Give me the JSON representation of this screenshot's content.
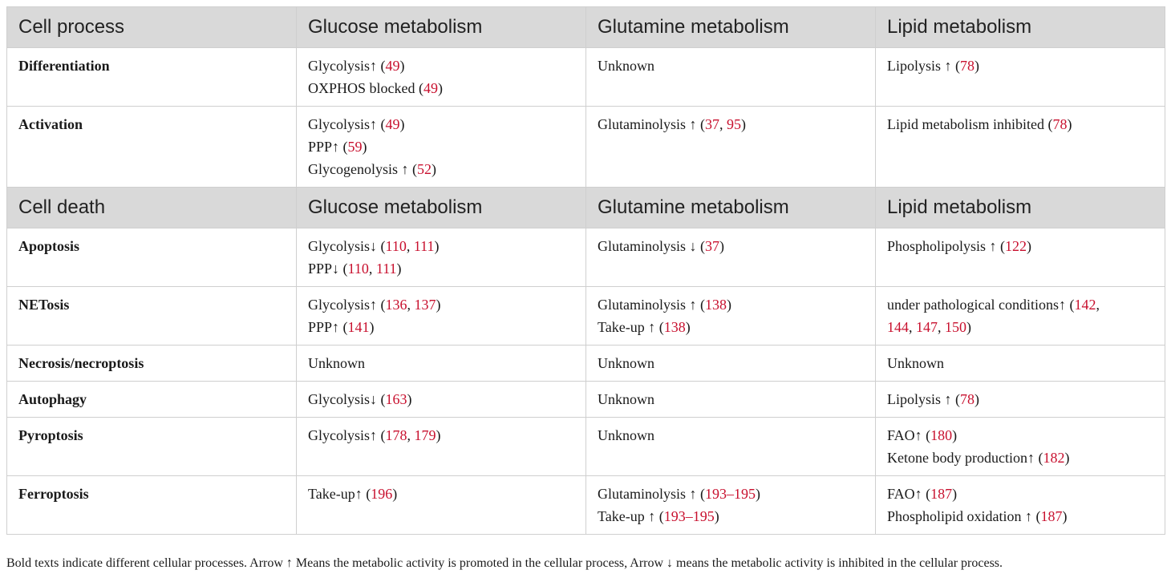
{
  "header1": [
    "Cell process",
    "Glucose metabolism",
    "Glutamine metabolism",
    "Lipid metabolism"
  ],
  "group1": [
    {
      "label": "Differentiation",
      "cells": [
        [
          [
            {
              "t": "Glycolysis↑ ("
            },
            {
              "t": "49",
              "r": true
            },
            {
              "t": ")"
            }
          ],
          [
            {
              "t": "OXPHOS blocked ("
            },
            {
              "t": "49",
              "r": true
            },
            {
              "t": ")"
            }
          ]
        ],
        [
          [
            {
              "t": "Unknown"
            }
          ]
        ],
        [
          [
            {
              "t": "Lipolysis ↑ ("
            },
            {
              "t": "78",
              "r": true
            },
            {
              "t": ")"
            }
          ]
        ]
      ]
    },
    {
      "label": "Activation",
      "cells": [
        [
          [
            {
              "t": "Glycolysis↑ ("
            },
            {
              "t": "49",
              "r": true
            },
            {
              "t": ")"
            }
          ],
          [
            {
              "t": "PPP↑ ("
            },
            {
              "t": "59",
              "r": true
            },
            {
              "t": ")"
            }
          ],
          [
            {
              "t": "Glycogenolysis ↑ ("
            },
            {
              "t": "52",
              "r": true
            },
            {
              "t": ")"
            }
          ]
        ],
        [
          [
            {
              "t": "Glutaminolysis ↑ ("
            },
            {
              "t": "37",
              "r": true
            },
            {
              "t": ", "
            },
            {
              "t": "95",
              "r": true
            },
            {
              "t": ")"
            }
          ]
        ],
        [
          [
            {
              "t": "Lipid metabolism inhibited ("
            },
            {
              "t": "78",
              "r": true
            },
            {
              "t": ")"
            }
          ]
        ]
      ]
    }
  ],
  "header2": [
    "Cell death",
    "Glucose metabolism",
    "Glutamine metabolism",
    "Lipid metabolism"
  ],
  "group2": [
    {
      "label": "Apoptosis",
      "cells": [
        [
          [
            {
              "t": "Glycolysis↓ ("
            },
            {
              "t": "110",
              "r": true
            },
            {
              "t": ", "
            },
            {
              "t": "111",
              "r": true
            },
            {
              "t": ")"
            }
          ],
          [
            {
              "t": "PPP↓ ("
            },
            {
              "t": "110",
              "r": true
            },
            {
              "t": ", "
            },
            {
              "t": "111",
              "r": true
            },
            {
              "t": ")"
            }
          ]
        ],
        [
          [
            {
              "t": "Glutaminolysis ↓ ("
            },
            {
              "t": "37",
              "r": true
            },
            {
              "t": ")"
            }
          ]
        ],
        [
          [
            {
              "t": "Phospholipolysis ↑ ("
            },
            {
              "t": "122",
              "r": true
            },
            {
              "t": ")"
            }
          ]
        ]
      ]
    },
    {
      "label": "NETosis",
      "cells": [
        [
          [
            {
              "t": "Glycolysis↑ ("
            },
            {
              "t": "136",
              "r": true
            },
            {
              "t": ", "
            },
            {
              "t": "137",
              "r": true
            },
            {
              "t": ")"
            }
          ],
          [
            {
              "t": "PPP↑ ("
            },
            {
              "t": "141",
              "r": true
            },
            {
              "t": ")"
            }
          ]
        ],
        [
          [
            {
              "t": "Glutaminolysis ↑ ("
            },
            {
              "t": "138",
              "r": true
            },
            {
              "t": ")"
            }
          ],
          [
            {
              "t": "Take-up ↑ ("
            },
            {
              "t": "138",
              "r": true
            },
            {
              "t": ")"
            }
          ]
        ],
        [
          [
            {
              "t": "under pathological conditions↑ ("
            },
            {
              "t": "142",
              "r": true
            },
            {
              "t": ","
            }
          ],
          [
            {
              "t": "144",
              "r": true
            },
            {
              "t": ", "
            },
            {
              "t": "147",
              "r": true
            },
            {
              "t": ", "
            },
            {
              "t": "150",
              "r": true
            },
            {
              "t": ")"
            }
          ]
        ]
      ]
    },
    {
      "label": "Necrosis/necroptosis",
      "cells": [
        [
          [
            {
              "t": "Unknown"
            }
          ]
        ],
        [
          [
            {
              "t": "Unknown"
            }
          ]
        ],
        [
          [
            {
              "t": "Unknown"
            }
          ]
        ]
      ]
    },
    {
      "label": "Autophagy",
      "cells": [
        [
          [
            {
              "t": "Glycolysis↓ ("
            },
            {
              "t": "163",
              "r": true
            },
            {
              "t": ")"
            }
          ]
        ],
        [
          [
            {
              "t": "Unknown"
            }
          ]
        ],
        [
          [
            {
              "t": "Lipolysis ↑ ("
            },
            {
              "t": "78",
              "r": true
            },
            {
              "t": ")"
            }
          ]
        ]
      ]
    },
    {
      "label": "Pyroptosis",
      "cells": [
        [
          [
            {
              "t": "Glycolysis↑ ("
            },
            {
              "t": "178",
              "r": true
            },
            {
              "t": ", "
            },
            {
              "t": "179",
              "r": true
            },
            {
              "t": ")"
            }
          ]
        ],
        [
          [
            {
              "t": "Unknown"
            }
          ]
        ],
        [
          [
            {
              "t": "FAO↑ ("
            },
            {
              "t": "180",
              "r": true
            },
            {
              "t": ")"
            }
          ],
          [
            {
              "t": "Ketone body production↑ ("
            },
            {
              "t": "182",
              "r": true
            },
            {
              "t": ")"
            }
          ]
        ]
      ]
    },
    {
      "label": "Ferroptosis",
      "cells": [
        [
          [
            {
              "t": "Take-up↑ ("
            },
            {
              "t": "196",
              "r": true
            },
            {
              "t": ")"
            }
          ]
        ],
        [
          [
            {
              "t": "Glutaminolysis ↑ ("
            },
            {
              "t": "193–195",
              "r": true
            },
            {
              "t": ")"
            }
          ],
          [
            {
              "t": "Take-up ↑ ("
            },
            {
              "t": "193–195",
              "r": true
            },
            {
              "t": ")"
            }
          ]
        ],
        [
          [
            {
              "t": "FAO↑ ("
            },
            {
              "t": "187",
              "r": true
            },
            {
              "t": ")"
            }
          ],
          [
            {
              "t": "Phospholipid oxidation ↑ ("
            },
            {
              "t": "187",
              "r": true
            },
            {
              "t": ")"
            }
          ]
        ]
      ]
    }
  ],
  "footnote": "Bold texts indicate different cellular processes. Arrow ↑ Means the metabolic activity is promoted in the cellular process, Arrow ↓ means the metabolic activity is inhibited in the cellular process.",
  "colors": {
    "header_bg": "#d9d9d9",
    "reference": "#c8102e",
    "border": "#cfcfcf"
  }
}
